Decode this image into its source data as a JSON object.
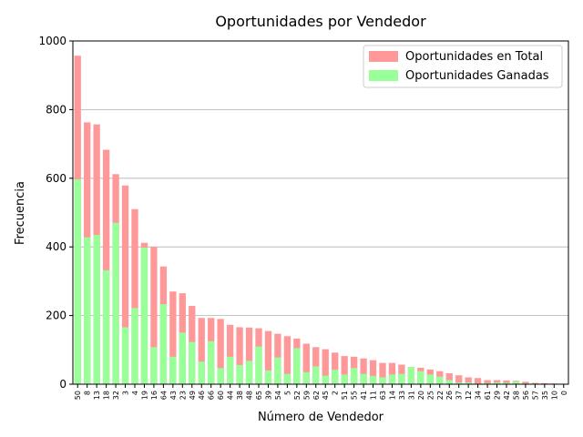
{
  "chart_data": {
    "type": "bar",
    "title": "Oportunidades por Vendedor",
    "xlabel": "Número de Vendedor",
    "ylabel": "Frecuencia",
    "ylim": [
      0,
      1000
    ],
    "yticks": [
      0,
      200,
      400,
      600,
      800,
      1000
    ],
    "grid": "horizontal",
    "legend_position": "top-right",
    "categories": [
      "50",
      "8",
      "13",
      "18",
      "32",
      "3",
      "4",
      "19",
      "16",
      "64",
      "43",
      "23",
      "49",
      "46",
      "66",
      "60",
      "44",
      "38",
      "48",
      "65",
      "39",
      "54",
      "5",
      "52",
      "59",
      "62",
      "45",
      "2",
      "51",
      "55",
      "41",
      "11",
      "63",
      "14",
      "33",
      "31",
      "20",
      "25",
      "22",
      "26",
      "37",
      "12",
      "34",
      "61",
      "29",
      "42",
      "58",
      "56",
      "57",
      "35",
      "10",
      "0"
    ],
    "series": [
      {
        "name": "Oportunidades en Total",
        "color": "#ff9999",
        "values": [
          957,
          763,
          757,
          683,
          612,
          579,
          510,
          412,
          400,
          343,
          270,
          265,
          228,
          193,
          193,
          190,
          173,
          166,
          165,
          163,
          155,
          147,
          140,
          133,
          118,
          108,
          102,
          92,
          82,
          80,
          75,
          70,
          62,
          62,
          57,
          50,
          48,
          43,
          38,
          32,
          26,
          20,
          18,
          12,
          12,
          11,
          10,
          7,
          4,
          3,
          2,
          1
        ]
      },
      {
        "name": "Oportunidades Ganadas",
        "color": "#99ff99",
        "values": [
          597,
          428,
          435,
          332,
          470,
          166,
          222,
          398,
          108,
          233,
          80,
          150,
          123,
          66,
          125,
          47,
          80,
          56,
          68,
          110,
          40,
          78,
          30,
          105,
          35,
          52,
          25,
          42,
          28,
          47,
          30,
          24,
          20,
          28,
          30,
          50,
          38,
          28,
          22,
          12,
          5,
          5,
          2,
          3,
          5,
          4,
          8,
          2,
          2,
          1,
          1,
          0
        ]
      }
    ]
  }
}
